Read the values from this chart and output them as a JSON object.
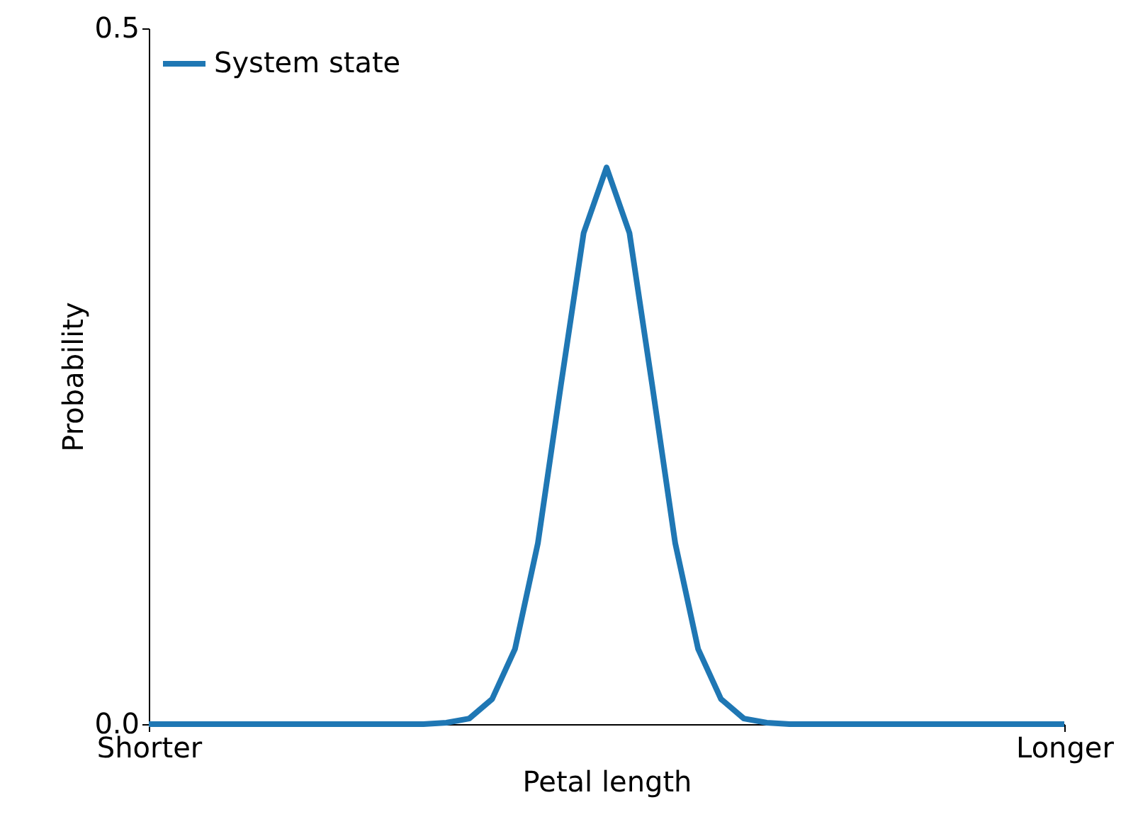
{
  "chart_data": {
    "type": "line",
    "xlabel": "Petal length",
    "ylabel": "Probability",
    "categories": [
      "Shorter",
      null,
      null,
      null,
      null,
      null,
      null,
      null,
      null,
      null,
      null,
      null,
      null,
      null,
      null,
      null,
      null,
      null,
      null,
      null,
      null,
      null,
      null,
      null,
      null,
      null,
      null,
      null,
      null,
      null,
      null,
      null,
      null,
      null,
      null,
      null,
      null,
      null,
      null,
      null,
      "Longer"
    ],
    "ylim": [
      0,
      0.5
    ],
    "yticks": [
      {
        "value": 0,
        "label": "0.0"
      },
      0.5
    ],
    "series": [
      {
        "name": "System state",
        "color": "#1f77b4",
        "values": [
          0,
          0,
          0,
          0,
          0,
          0,
          0,
          0,
          0,
          0,
          0,
          0,
          0,
          0.001,
          0.004,
          0.018,
          0.054,
          0.13,
          0.243,
          0.353,
          0.4,
          0.353,
          0.243,
          0.13,
          0.054,
          0.018,
          0.004,
          0.001,
          0,
          0,
          0,
          0,
          0,
          0,
          0,
          0,
          0,
          0,
          0,
          0,
          0
        ]
      }
    ],
    "legend": "top left",
    "line_style": "solid",
    "marker": "none"
  }
}
